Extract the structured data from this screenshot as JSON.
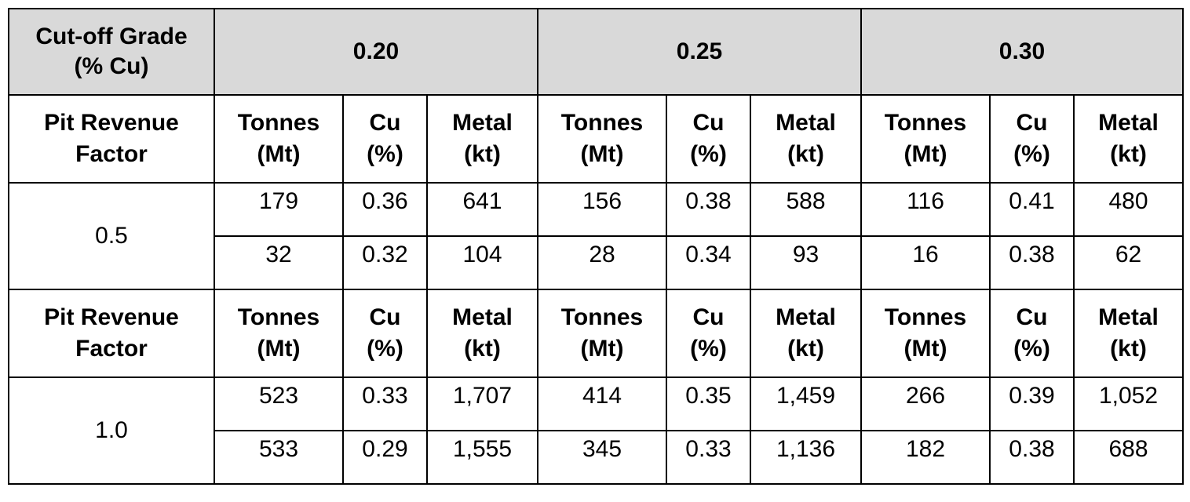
{
  "header": {
    "cutoff_label_line1": "Cut-off Grade",
    "cutoff_label_line2": "(% Cu)",
    "grades": [
      "0.20",
      "0.25",
      "0.30"
    ]
  },
  "subheader": {
    "factor_line1": "Pit Revenue",
    "factor_line2": "Factor",
    "tonnes_line1": "Tonnes",
    "tonnes_line2": "(Mt)",
    "cu_line1": "Cu",
    "cu_line2": "(%)",
    "metal_line1": "Metal",
    "metal_line2": "(kt)"
  },
  "groups": [
    {
      "factor": "0.5",
      "rows": [
        [
          "179",
          "0.36",
          "641",
          "156",
          "0.38",
          "588",
          "116",
          "0.41",
          "480"
        ],
        [
          "32",
          "0.32",
          "104",
          "28",
          "0.34",
          "93",
          "16",
          "0.38",
          "62"
        ]
      ]
    },
    {
      "factor": "1.0",
      "rows": [
        [
          "523",
          "0.33",
          "1,707",
          "414",
          "0.35",
          "1,459",
          "266",
          "0.39",
          "1,052"
        ],
        [
          "533",
          "0.29",
          "1,555",
          "345",
          "0.33",
          "1,136",
          "182",
          "0.38",
          "688"
        ]
      ]
    }
  ]
}
